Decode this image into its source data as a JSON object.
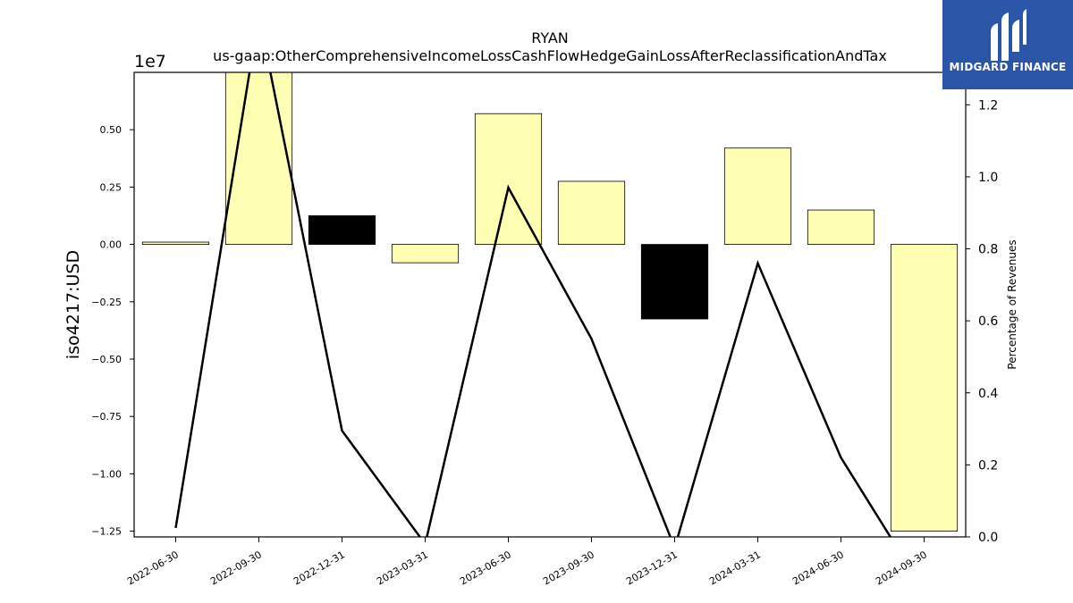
{
  "chart_data": {
    "type": "bar",
    "title": "RYAN",
    "subtitle": "us-gaap:OtherComprehensiveIncomeLossCashFlowHedgeGainLossAfterReclassificationAndTax",
    "ylabel": "iso4217:USD",
    "y_offset_label": "1e7",
    "y2label": "Percentage of Revenues",
    "categories": [
      "2022-06-30",
      "2022-09-30",
      "2022-12-31",
      "2023-03-31",
      "2023-06-30",
      "2023-09-30",
      "2023-12-31",
      "2024-03-31",
      "2024-06-30",
      "2024-09-30"
    ],
    "values": [
      100000,
      8000000,
      1250000,
      -800000,
      5700000,
      2750000,
      -3250000,
      4200000,
      1500000,
      -12500000
    ],
    "bar_colors": [
      "#ffffb3",
      "#ffffb3",
      "#000000",
      "#ffffb3",
      "#ffffb3",
      "#ffffb3",
      "#000000",
      "#ffffb3",
      "#ffffb3",
      "#ffffb3"
    ],
    "ylim": [
      -12750000,
      7500000
    ],
    "yticks": [
      -12500000,
      -10000000,
      -7500000,
      -5000000,
      -2500000,
      0,
      2500000,
      5000000
    ],
    "ytick_labels": [
      "−1.25",
      "−1.00",
      "−0.75",
      "−0.50",
      "−0.25",
      "0.00",
      "0.25",
      "0.50"
    ],
    "series": [
      {
        "values": [
          0.025,
          1.45,
          0.295,
          -0.02,
          0.97,
          0.55,
          -0.03,
          0.76,
          0.22,
          -0.15
        ]
      }
    ],
    "y2lim": [
      0,
      1.29
    ],
    "y2ticks": [
      0.0,
      0.2,
      0.4,
      0.6,
      0.8,
      1.0,
      1.2
    ],
    "y2tick_labels": [
      "0.0",
      "0.2",
      "0.4",
      "0.6",
      "0.8",
      "1.0",
      "1.2"
    ],
    "grid": false
  },
  "logo": {
    "text": "MIDGARD FINANCE",
    "icon": "midgard-logo-icon",
    "color": "#2b56a8"
  }
}
